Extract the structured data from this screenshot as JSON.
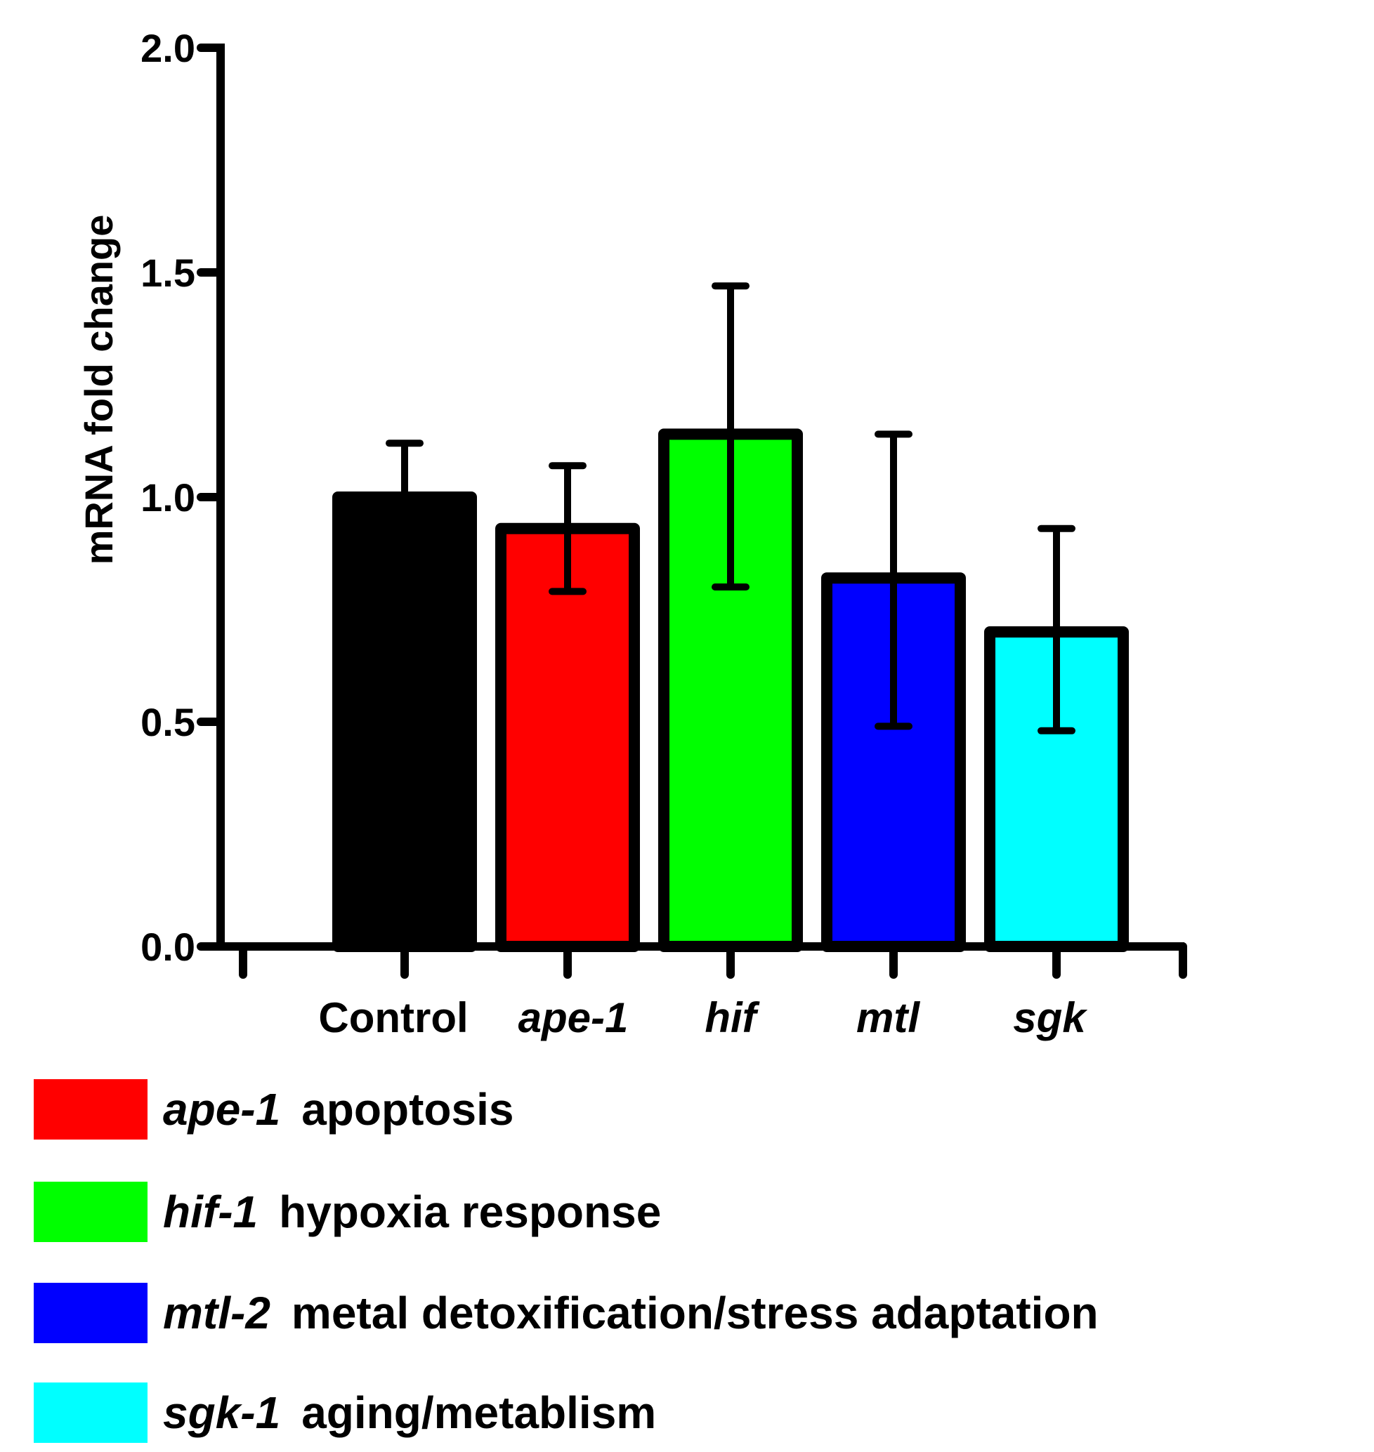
{
  "chart_data": {
    "type": "bar",
    "title": "",
    "xlabel": "",
    "ylabel": "mRNA fold change",
    "ylim": [
      0,
      2.0
    ],
    "yticks": [
      "0.0",
      "0.5",
      "1.0",
      "1.5",
      "2.0"
    ],
    "grid": false,
    "categories": [
      {
        "label": "Control",
        "italic": false
      },
      {
        "label": "ape-1",
        "italic": true
      },
      {
        "label": "hif",
        "italic": true
      },
      {
        "label": "mtl",
        "italic": true
      },
      {
        "label": "sgk",
        "italic": true
      }
    ],
    "values": [
      1.0,
      0.93,
      1.14,
      0.82,
      0.7
    ],
    "error_upper": [
      1.12,
      1.07,
      1.47,
      1.14,
      0.93
    ],
    "error_lower": [
      1.0,
      0.79,
      0.8,
      0.49,
      0.48
    ],
    "colors": [
      "#000000",
      "#ff0000",
      "#00ff00",
      "#0000ff",
      "#00ffff"
    ]
  },
  "legend": [
    {
      "gene": "ape-1",
      "description": "apoptosis",
      "color": "#ff0000"
    },
    {
      "gene": "hif-1",
      "description": "hypoxia response",
      "color": "#00ff00"
    },
    {
      "gene": "mtl-2",
      "description": "metal detoxification/stress adaptation",
      "color": "#0000ff"
    },
    {
      "gene": "sgk-1",
      "description": "aging/metablism",
      "color": "#00ffff"
    }
  ]
}
